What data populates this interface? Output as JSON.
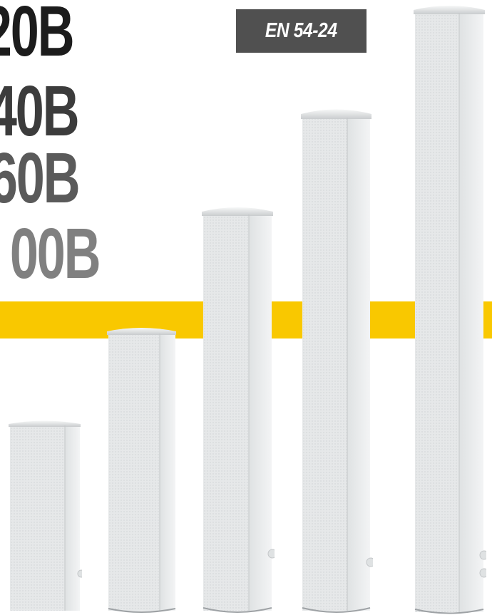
{
  "models": [
    {
      "label": "20B"
    },
    {
      "label": "40B"
    },
    {
      "label": "60B"
    },
    {
      "label": "00B"
    }
  ],
  "badge": {
    "label": "EN 54-24"
  },
  "colors": {
    "accent_stripe": "#f9c800",
    "badge_bg": "#505050",
    "speaker_body": "#e9ebec"
  },
  "images": [
    {
      "name": "column-speaker-small"
    },
    {
      "name": "column-speaker-medium"
    },
    {
      "name": "column-speaker-large"
    },
    {
      "name": "column-speaker-xlarge"
    },
    {
      "name": "column-speaker-xxlarge"
    }
  ]
}
